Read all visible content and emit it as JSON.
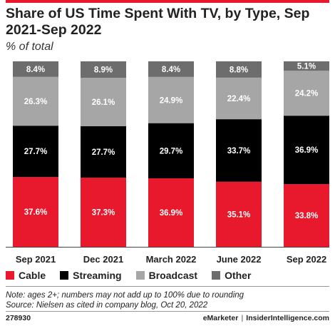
{
  "title": "Share of US Time Spent With TV, by Type, Sep 2021-Sep 2022",
  "subtitle": "% of total",
  "colors": {
    "cable": "#e8192c",
    "streaming": "#000000",
    "broadcast": "#a6a6a6",
    "other": "#6d6d6d",
    "accent": "#e8192c"
  },
  "chart_data": {
    "type": "bar",
    "stacked": true,
    "categories": [
      "Sep 2021",
      "Dec 2021",
      "March 2022",
      "June 2022",
      "Sep 2022"
    ],
    "series": [
      {
        "name": "Cable",
        "values": [
          37.6,
          37.3,
          36.9,
          35.1,
          33.8
        ],
        "labels": [
          "37.6%",
          "37.3%",
          "36.9%",
          "35.1%",
          "33.8%"
        ]
      },
      {
        "name": "Streaming",
        "values": [
          27.7,
          27.7,
          29.7,
          33.7,
          36.9
        ],
        "labels": [
          "27.7%",
          "27.7%",
          "29.7%",
          "33.7%",
          "36.9%"
        ]
      },
      {
        "name": "Broadcast",
        "values": [
          26.3,
          26.1,
          24.9,
          22.4,
          24.2
        ],
        "labels": [
          "26.3%",
          "26.1%",
          "24.9%",
          "22.4%",
          "24.2%"
        ]
      },
      {
        "name": "Other",
        "values": [
          8.4,
          8.9,
          8.4,
          8.8,
          5.1
        ],
        "labels": [
          "8.4%",
          "8.9%",
          "8.4%",
          "8.8%",
          "5.1%"
        ]
      }
    ],
    "ylim": [
      0,
      100
    ],
    "grid": false,
    "legend": "bottom"
  },
  "legend": [
    {
      "label": "Cable",
      "color": "#e8192c"
    },
    {
      "label": "Streaming",
      "color": "#000000"
    },
    {
      "label": "Broadcast",
      "color": "#a6a6a6"
    },
    {
      "label": "Other",
      "color": "#6d6d6d"
    }
  ],
  "note": "Note: ages 2+; numbers may not add up to 100% due to rounding",
  "source": "Source: Nielsen as cited in company blog, Oct 20, 2022",
  "footer": {
    "id": "278930",
    "brand_left": "eMarketer",
    "separator": "|",
    "brand_right": "InsiderIntelligence.com"
  }
}
